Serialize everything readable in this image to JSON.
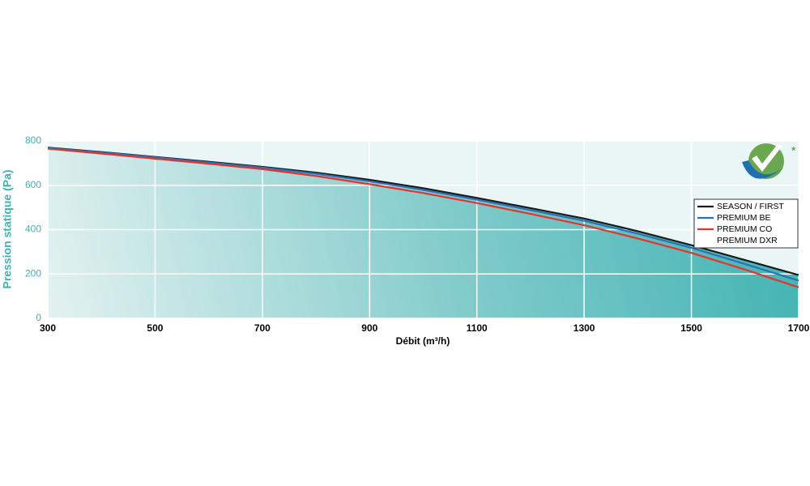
{
  "chart_data": {
    "type": "line",
    "xlabel": "Débit (m³/h)",
    "ylabel": "Pression statique (Pa)",
    "x": [
      300,
      400,
      500,
      600,
      700,
      800,
      900,
      1000,
      1100,
      1200,
      1300,
      1400,
      1500,
      1600,
      1700
    ],
    "series": [
      {
        "name": "SEASON / FIRST",
        "color": "#1a1a1a",
        "values": [
          770,
          750,
          728,
          706,
          683,
          657,
          625,
          587,
          543,
          497,
          450,
          393,
          330,
          263,
          195
        ]
      },
      {
        "name": "PREMIUM BE",
        "color": "#2a72b5",
        "values": [
          768,
          748,
          726,
          703,
          680,
          652,
          618,
          579,
          535,
          488,
          440,
          382,
          318,
          245,
          170
        ]
      },
      {
        "name": "PREMIUM CO\nPREMIUM DXR",
        "color": "#e8322b",
        "values": [
          765,
          743,
          720,
          697,
          673,
          642,
          605,
          565,
          520,
          471,
          420,
          360,
          295,
          220,
          140
        ]
      }
    ],
    "xlim": [
      300,
      1700
    ],
    "xticks": [
      300,
      500,
      700,
      900,
      1100,
      1300,
      1500,
      1700
    ],
    "ylim": [
      0,
      800
    ],
    "yticks": [
      0,
      200,
      400,
      600,
      800
    ],
    "grid": true,
    "legend": "right",
    "logo_mark": "*"
  }
}
